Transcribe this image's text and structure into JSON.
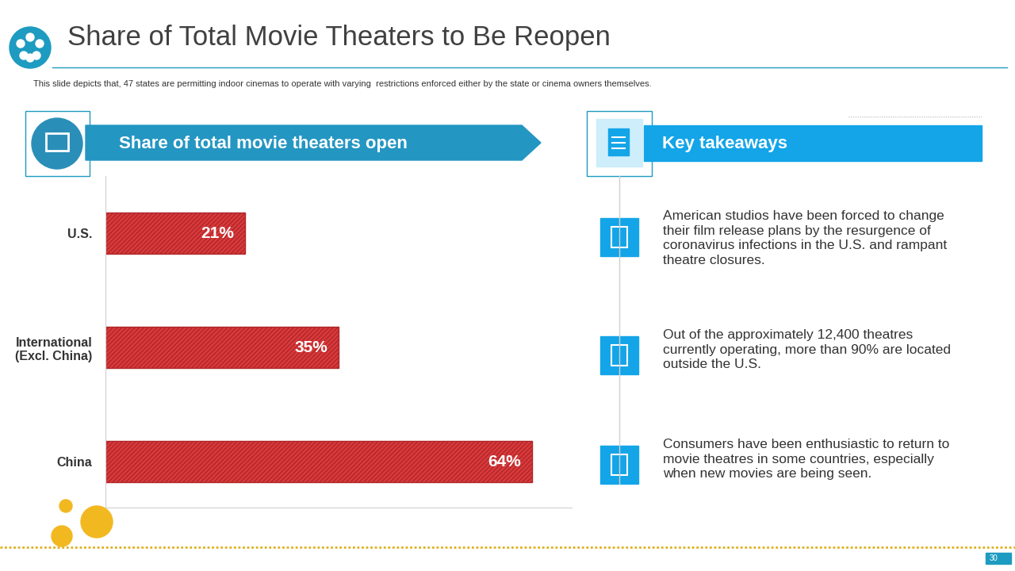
{
  "slide": {
    "title": "Share of Total Movie Theaters to Be Reopen",
    "subtitle": "This slide depicts that, 47 states are permitting indoor cinemas to operate with varying  restrictions enforced either by the state or cinema owners themselves.",
    "page": "30"
  },
  "chart_data": {
    "type": "bar",
    "title": "Share of total movie theaters open",
    "orientation": "horizontal",
    "categories": [
      "U.S.",
      "International\n(Excl. China)",
      "China"
    ],
    "values": [
      21,
      35,
      64
    ],
    "value_labels": [
      "21%",
      "35%",
      "64%"
    ],
    "data_labels": true,
    "color": "#d93a3c",
    "xlim": [
      0,
      70
    ],
    "xticks": [],
    "tick_labels": "y",
    "grid": false
  },
  "takeaways": {
    "header": "Key takeaways",
    "items": [
      "American studios have been forced to change\ntheir film release plans by the resurgence of\ncoronavirus infections in the U.S. and rampant\ntheatre closures.",
      "Out of the approximately 12,400 theatres\ncurrently operating, more than 90% are located\noutside the U.S.",
      "Consumers have been enthusiastic to return to\nmovie theatres in some countries, especially\nwhen new movies are being seen."
    ]
  }
}
